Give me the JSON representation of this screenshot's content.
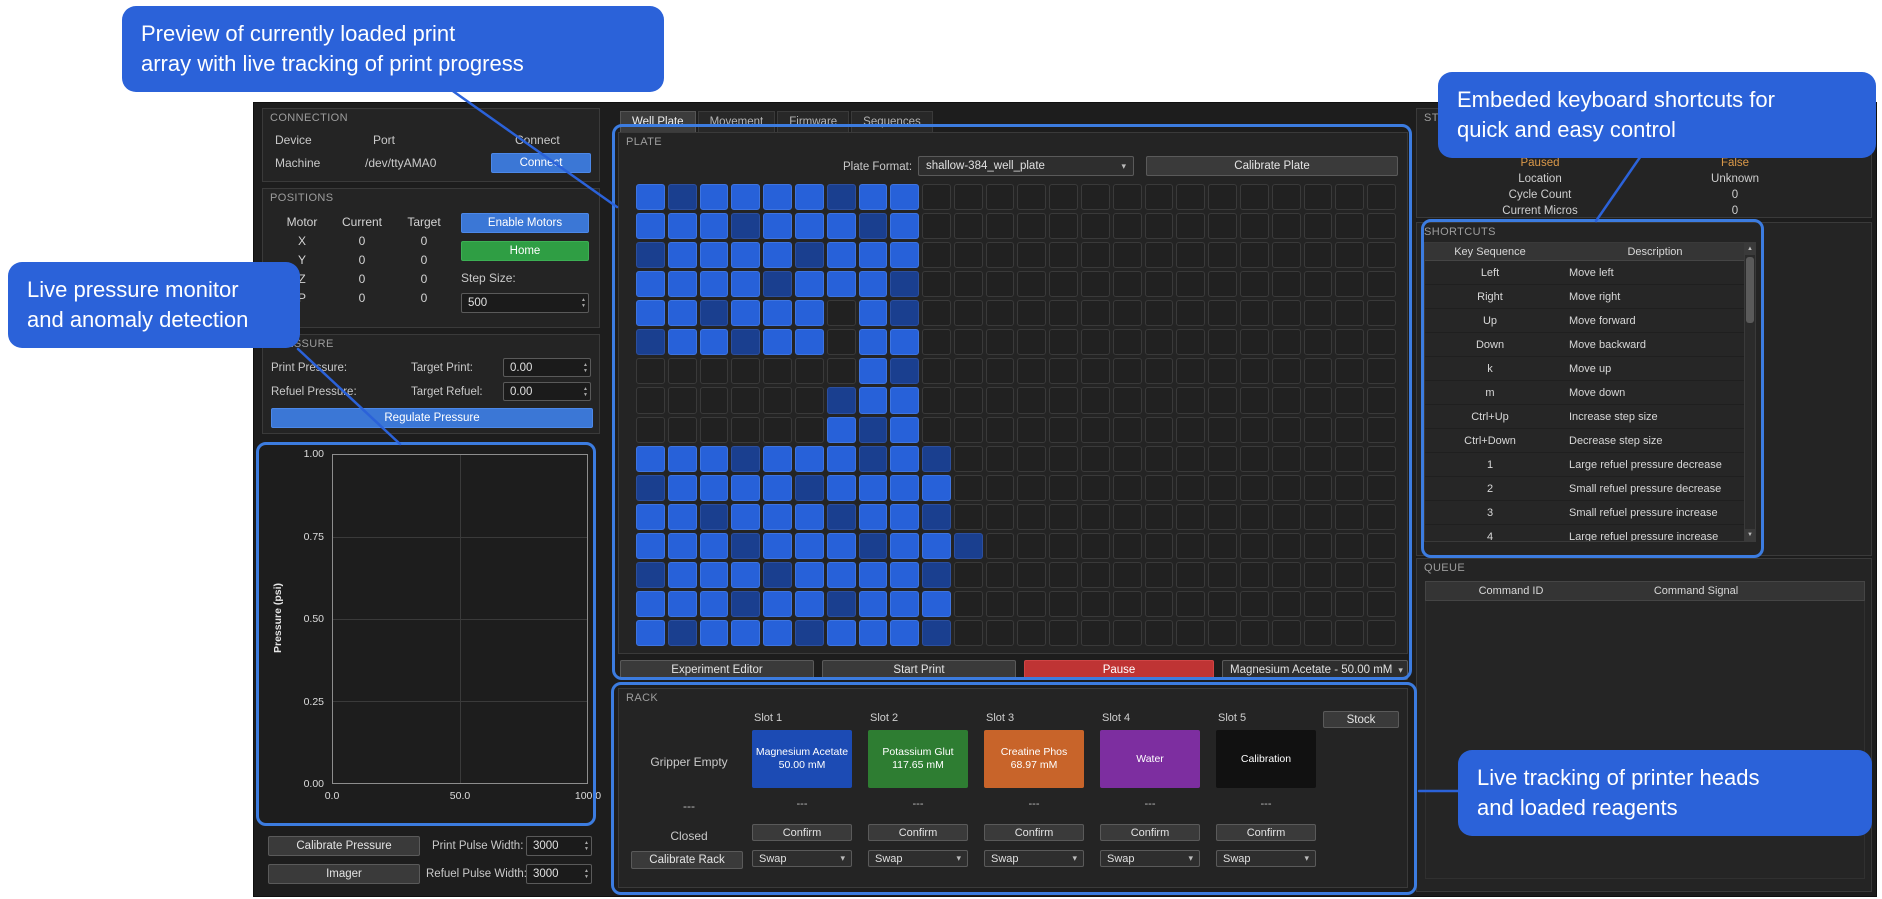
{
  "colors": {
    "accent_blue": "#3b77d6",
    "home_green": "#2f9e44",
    "pause_red": "#bf3434",
    "callout_blue": "#2b62d9",
    "outline_blue": "#3c7ce0",
    "status_warn": "#d9984a",
    "well_empty": "#212121",
    "well_dim": "#1a3f8f",
    "well_lit": "#2761d9"
  },
  "callouts": {
    "plate": "Preview of currently loaded print\narray with live tracking of print progress",
    "pressure": "Live pressure monitor\nand anomaly detection",
    "shortcuts": "Embeded keyboard shortcuts for\nquick and easy control",
    "rack": "Live tracking of printer heads\nand loaded reagents"
  },
  "connection": {
    "title": "CONNECTION",
    "device_label": "Device",
    "port_label": "Port",
    "connect_label": "Connect",
    "device_value": "Machine",
    "port_value": "/dev/ttyAMA0",
    "connect_button": "Connect"
  },
  "positions": {
    "title": "POSITIONS",
    "col_motor": "Motor",
    "col_current": "Current",
    "col_target": "Target",
    "rows": [
      {
        "motor": "X",
        "current": "0",
        "target": "0"
      },
      {
        "motor": "Y",
        "current": "0",
        "target": "0"
      },
      {
        "motor": "Z",
        "current": "0",
        "target": "0"
      },
      {
        "motor": "P",
        "current": "0",
        "target": "0"
      }
    ],
    "enable_motors_button": "Enable Motors",
    "home_button": "Home",
    "step_size_label": "Step Size:",
    "step_size_value": "500"
  },
  "pressure": {
    "title": "PRESSURE",
    "print_pressure_label": "Print Pressure:",
    "target_print_label": "Target Print:",
    "target_print_value": "0.00",
    "refuel_pressure_label": "Refuel Pressure:",
    "target_refuel_label": "Target Refuel:",
    "target_refuel_value": "0.00",
    "regulate_button": "Regulate Pressure",
    "calibrate_pressure_button": "Calibrate Pressure",
    "print_pulse_label": "Print Pulse Width:",
    "print_pulse_value": "3000",
    "imager_button": "Imager",
    "refuel_pulse_label": "Refuel Pulse Width:",
    "refuel_pulse_value": "3000"
  },
  "chart_data": {
    "type": "line",
    "title": "",
    "xlabel": "",
    "ylabel": "Pressure (psi)",
    "x_ticks": [
      "0.0",
      "50.0",
      "100.0"
    ],
    "y_ticks": [
      "1.00",
      "0.75",
      "0.50",
      "0.25",
      "0.00"
    ],
    "xlim": [
      0.0,
      100.0
    ],
    "ylim": [
      0.0,
      1.0
    ],
    "grid": true,
    "legend": false,
    "series": []
  },
  "tabs": [
    {
      "label": "Well Plate",
      "active": true
    },
    {
      "label": "Movement",
      "active": false
    },
    {
      "label": "Firmware",
      "active": false
    },
    {
      "label": "Sequences",
      "active": false
    }
  ],
  "plate": {
    "title": "PLATE",
    "format_label": "Plate Format:",
    "format_value": "shallow-384_well_plate",
    "calibrate_button": "Calibrate Plate",
    "rows": 16,
    "cols": 24,
    "grid": [
      "212222122000000000000000",
      "222122212000000000000000",
      "122221222000000000000000",
      "222212221000000000000000",
      "221222021000000000000000",
      "122122022000000000000000",
      "000000021000000000000000",
      "000000122000000000000000",
      "000000212000000000000000",
      "222122212100000000000000",
      "122221222200000000000000",
      "221222122100000000000000",
      "222122212210000000000000",
      "122212222100000000000000",
      "222122122200000000000000",
      "212221222100000000000000"
    ]
  },
  "plate_actions": {
    "experiment_editor_button": "Experiment Editor",
    "start_print_button": "Start Print",
    "pause_button": "Pause",
    "reagent_dropdown": "Magnesium Acetate - 50.00 mM"
  },
  "rack": {
    "title": "RACK",
    "stock_label": "Stock",
    "gripper_status": "Gripper Empty",
    "gripper_item": "---",
    "gripper_door": "Closed",
    "calibrate_rack_button": "Calibrate Rack",
    "confirm_button": "Confirm",
    "swap_button": "Swap",
    "slots": [
      {
        "label": "Slot 1",
        "line1": "Magnesium Acetate",
        "line2": "50.00 mM",
        "color": "#1c4bb4",
        "status": "---"
      },
      {
        "label": "Slot 2",
        "line1": "Potassium Glut",
        "line2": "117.65 mM",
        "color": "#2e7d32",
        "status": "---"
      },
      {
        "label": "Slot 3",
        "line1": "Creatine Phos",
        "line2": "68.97 mM",
        "color": "#c8642a",
        "status": "---"
      },
      {
        "label": "Slot 4",
        "line1": "Water",
        "line2": "",
        "color": "#7d2ea0",
        "status": "---"
      },
      {
        "label": "Slot 5",
        "line1": "Calibration",
        "line2": "",
        "color": "#111111",
        "status": "---"
      }
    ]
  },
  "status": {
    "title": "STATUS",
    "rows": [
      {
        "label": "Paused",
        "value": "False",
        "warn": true
      },
      {
        "label": "Location",
        "value": "Unknown",
        "warn": false
      },
      {
        "label": "Cycle Count",
        "value": "0",
        "warn": false
      },
      {
        "label": "Current Micros",
        "value": "0",
        "warn": false
      }
    ]
  },
  "shortcuts": {
    "title": "SHORTCUTS",
    "col_key": "Key Sequence",
    "col_desc": "Description",
    "rows": [
      {
        "key": "Left",
        "desc": "Move left"
      },
      {
        "key": "Right",
        "desc": "Move right"
      },
      {
        "key": "Up",
        "desc": "Move forward"
      },
      {
        "key": "Down",
        "desc": "Move backward"
      },
      {
        "key": "k",
        "desc": "Move up"
      },
      {
        "key": "m",
        "desc": "Move down"
      },
      {
        "key": "Ctrl+Up",
        "desc": "Increase step size"
      },
      {
        "key": "Ctrl+Down",
        "desc": "Decrease step size"
      },
      {
        "key": "1",
        "desc": "Large refuel pressure decrease"
      },
      {
        "key": "2",
        "desc": "Small refuel pressure decrease"
      },
      {
        "key": "3",
        "desc": "Small refuel pressure increase"
      },
      {
        "key": "4",
        "desc": "Large refuel pressure increase"
      }
    ]
  },
  "queue": {
    "title": "QUEUE",
    "col_id": "Command ID",
    "col_signal": "Command Signal"
  }
}
